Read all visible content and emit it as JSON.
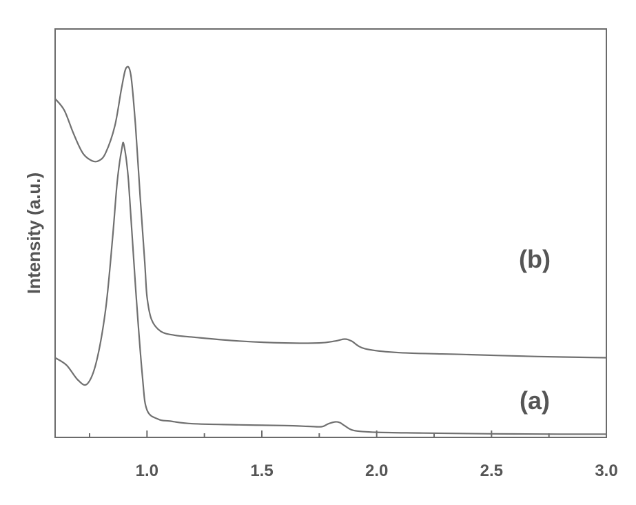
{
  "chart_data": {
    "type": "line",
    "title": "",
    "xlabel": "",
    "ylabel": "Intensity (a.u.)",
    "xlim": [
      0.6,
      3.0
    ],
    "ylim": [
      0,
      1
    ],
    "x_ticks": [
      "1.0",
      "1.5",
      "2.0",
      "2.5",
      "3.0"
    ],
    "x_tick_values": [
      1.0,
      1.5,
      2.0,
      2.5,
      3.0
    ],
    "x_minor_ticks": [
      0.75,
      1.25,
      1.75,
      2.25,
      2.75
    ],
    "y_ticks": [],
    "grid": false,
    "legend": "none",
    "series": [
      {
        "name": "(a)",
        "x": [
          0.6,
          0.65,
          0.7,
          0.74,
          0.78,
          0.82,
          0.85,
          0.87,
          0.89,
          0.9,
          0.92,
          0.95,
          0.98,
          1.0,
          1.05,
          1.1,
          1.2,
          1.4,
          1.6,
          1.7,
          1.76,
          1.79,
          1.82,
          1.84,
          1.86,
          1.9,
          2.0,
          2.2,
          2.5,
          2.8,
          3.0
        ],
        "y": [
          0.21,
          0.19,
          0.15,
          0.14,
          0.2,
          0.34,
          0.53,
          0.68,
          0.77,
          0.78,
          0.68,
          0.4,
          0.16,
          0.07,
          0.045,
          0.04,
          0.033,
          0.03,
          0.028,
          0.026,
          0.025,
          0.033,
          0.038,
          0.036,
          0.028,
          0.015,
          0.01,
          0.008,
          0.006,
          0.005,
          0.005
        ]
      },
      {
        "name": "(b)",
        "x": [
          0.6,
          0.64,
          0.68,
          0.72,
          0.76,
          0.79,
          0.82,
          0.86,
          0.89,
          0.91,
          0.93,
          0.95,
          0.97,
          0.99,
          1.0,
          1.02,
          1.06,
          1.12,
          1.2,
          1.4,
          1.6,
          1.75,
          1.82,
          1.86,
          1.89,
          1.95,
          2.1,
          2.4,
          2.7,
          3.0
        ],
        "y": [
          0.87,
          0.84,
          0.78,
          0.73,
          0.71,
          0.71,
          0.73,
          0.8,
          0.9,
          0.95,
          0.93,
          0.8,
          0.62,
          0.45,
          0.36,
          0.3,
          0.27,
          0.26,
          0.255,
          0.245,
          0.24,
          0.24,
          0.245,
          0.25,
          0.245,
          0.225,
          0.215,
          0.21,
          0.205,
          0.202
        ]
      }
    ]
  }
}
